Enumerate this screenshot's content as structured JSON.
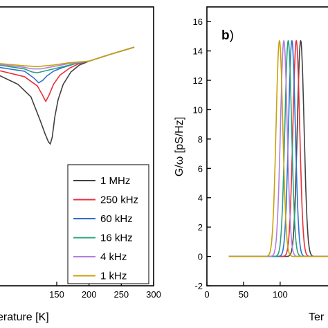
{
  "chart_data": [
    {
      "type": "line",
      "panel": "a",
      "xlabel": "Temperature [K]",
      "xlabel_visible": "erature [K]",
      "ylabel": "",
      "xlim": [
        60,
        300
      ],
      "ylim": [
        0,
        18
      ],
      "x_ticks": [
        "150",
        "200",
        "250",
        "300"
      ],
      "x_tick_values": [
        150,
        200,
        250,
        300
      ],
      "grid": false,
      "legend_position": "bottom-right",
      "series": [
        {
          "name": "1 MHz",
          "color": "#404040",
          "x": [
            60,
            90,
            110,
            125,
            132,
            137,
            140,
            143,
            147,
            152,
            160,
            172,
            185,
            200,
            230,
            270
          ],
          "y": [
            13.6,
            13.0,
            12.2,
            10.6,
            9.8,
            9.3,
            9.15,
            9.6,
            10.9,
            12.0,
            13.0,
            13.8,
            14.25,
            14.5,
            14.9,
            15.4
          ]
        },
        {
          "name": "250 kHz",
          "color": "#e8303a",
          "x": [
            60,
            100,
            120,
            128,
            133,
            138,
            145,
            155,
            170,
            185,
            200,
            230,
            270
          ],
          "y": [
            13.9,
            13.5,
            12.9,
            12.3,
            11.9,
            12.3,
            13.0,
            13.6,
            14.05,
            14.35,
            14.5,
            14.9,
            15.4
          ]
        },
        {
          "name": "60 kHz",
          "color": "#2f6fd0",
          "x": [
            60,
            100,
            115,
            122,
            128,
            135,
            145,
            160,
            180,
            200,
            230,
            270
          ],
          "y": [
            14.1,
            13.85,
            13.4,
            13.1,
            13.25,
            13.55,
            13.85,
            14.1,
            14.35,
            14.5,
            14.9,
            15.4
          ]
        },
        {
          "name": "16 kHz",
          "color": "#2aa27a",
          "x": [
            60,
            100,
            112,
            120,
            130,
            145,
            165,
            185,
            200,
            230,
            270
          ],
          "y": [
            14.25,
            14.0,
            13.8,
            13.75,
            13.85,
            14.0,
            14.2,
            14.4,
            14.5,
            14.9,
            15.4
          ]
        },
        {
          "name": "4 kHz",
          "color": "#b07fe0",
          "x": [
            60,
            100,
            112,
            125,
            145,
            170,
            200,
            230,
            270
          ],
          "y": [
            14.3,
            14.1,
            14.0,
            14.0,
            14.15,
            14.35,
            14.5,
            14.9,
            15.4
          ]
        },
        {
          "name": "1 kHz",
          "color": "#c9a10a",
          "x": [
            60,
            100,
            120,
            145,
            170,
            200,
            230,
            270
          ],
          "y": [
            14.35,
            14.2,
            14.15,
            14.25,
            14.4,
            14.5,
            14.9,
            15.4
          ]
        }
      ]
    },
    {
      "type": "line",
      "panel": "b",
      "panel_label": "b",
      "xlabel": "Temperature [K]",
      "xlabel_visible": "Ter",
      "ylabel": "G/ω [pS/Hz]",
      "xlim": [
        0,
        170
      ],
      "ylim": [
        -2,
        17
      ],
      "x_ticks": [
        "0",
        "50",
        "100"
      ],
      "x_tick_values": [
        0,
        50,
        100
      ],
      "y_ticks": [
        "-2",
        "0",
        "2",
        "4",
        "6",
        "8",
        "10",
        "12",
        "14",
        "16"
      ],
      "y_tick_values": [
        -2,
        0,
        2,
        4,
        6,
        8,
        10,
        12,
        14,
        16
      ],
      "grid": false,
      "peak_value": 14.7,
      "peak_width": 4.6,
      "baseline": 0,
      "x_start": 30,
      "series": [
        {
          "name": "1 MHz",
          "color": "#404040",
          "peak_x": 128
        },
        {
          "name": "250 kHz",
          "color": "#e8303a",
          "peak_x": 122
        },
        {
          "name": "60 kHz",
          "color": "#2f6fd0",
          "peak_x": 116
        },
        {
          "name": "16 kHz",
          "color": "#2aa27a",
          "peak_x": 111
        },
        {
          "name": "4 kHz",
          "color": "#b07fe0",
          "peak_x": 105
        },
        {
          "name": "1 kHz",
          "color": "#c9a10a",
          "peak_x": 99
        }
      ]
    }
  ]
}
